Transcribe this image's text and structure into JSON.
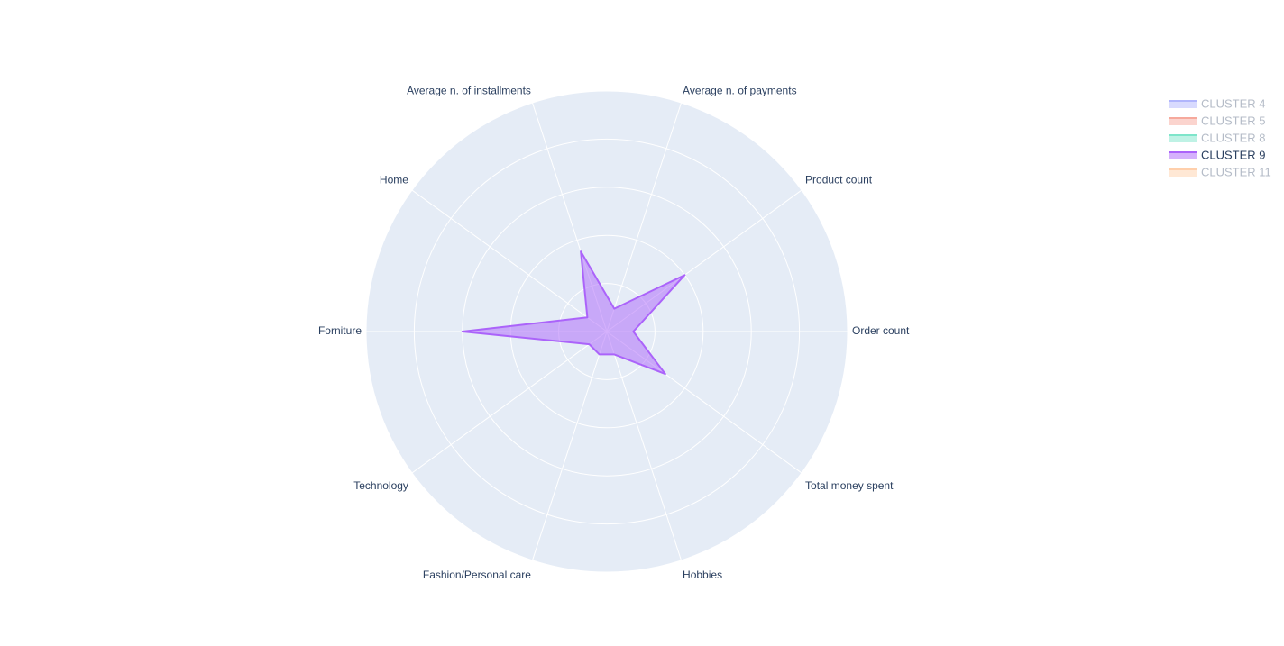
{
  "chart_data": {
    "type": "radar",
    "categories": [
      "Order count",
      "Product count",
      "Average n. of payments",
      "Average n. of installments",
      "Home",
      "Forniture",
      "Technology",
      "Fashion/Personal care",
      "Hobbies",
      "Total money spent"
    ],
    "rlim": [
      0,
      1
    ],
    "rticks": [
      0.2,
      0.4,
      0.6,
      0.8,
      1
    ],
    "grid": true,
    "legend": "top-right",
    "series": [
      {
        "name": "CLUSTER 4",
        "color": "#636efa",
        "visible": false,
        "values": [
          null,
          null,
          null,
          null,
          null,
          null,
          null,
          null,
          null,
          null
        ]
      },
      {
        "name": "CLUSTER 5",
        "color": "#ef553b",
        "visible": false,
        "values": [
          null,
          null,
          null,
          null,
          null,
          null,
          null,
          null,
          null,
          null
        ]
      },
      {
        "name": "CLUSTER 8",
        "color": "#00cc96",
        "visible": false,
        "values": [
          null,
          null,
          null,
          null,
          null,
          null,
          null,
          null,
          null,
          null
        ]
      },
      {
        "name": "CLUSTER 9",
        "color": "#ab63fa",
        "visible": true,
        "values": [
          0.11,
          0.4,
          0.1,
          0.35,
          0.1,
          0.6,
          0.09,
          0.1,
          0.1,
          0.3
        ]
      },
      {
        "name": "CLUSTER 11",
        "color": "#ffa15a",
        "visible": false,
        "values": [
          null,
          null,
          null,
          null,
          null,
          null,
          null,
          null,
          null,
          null
        ]
      }
    ]
  }
}
